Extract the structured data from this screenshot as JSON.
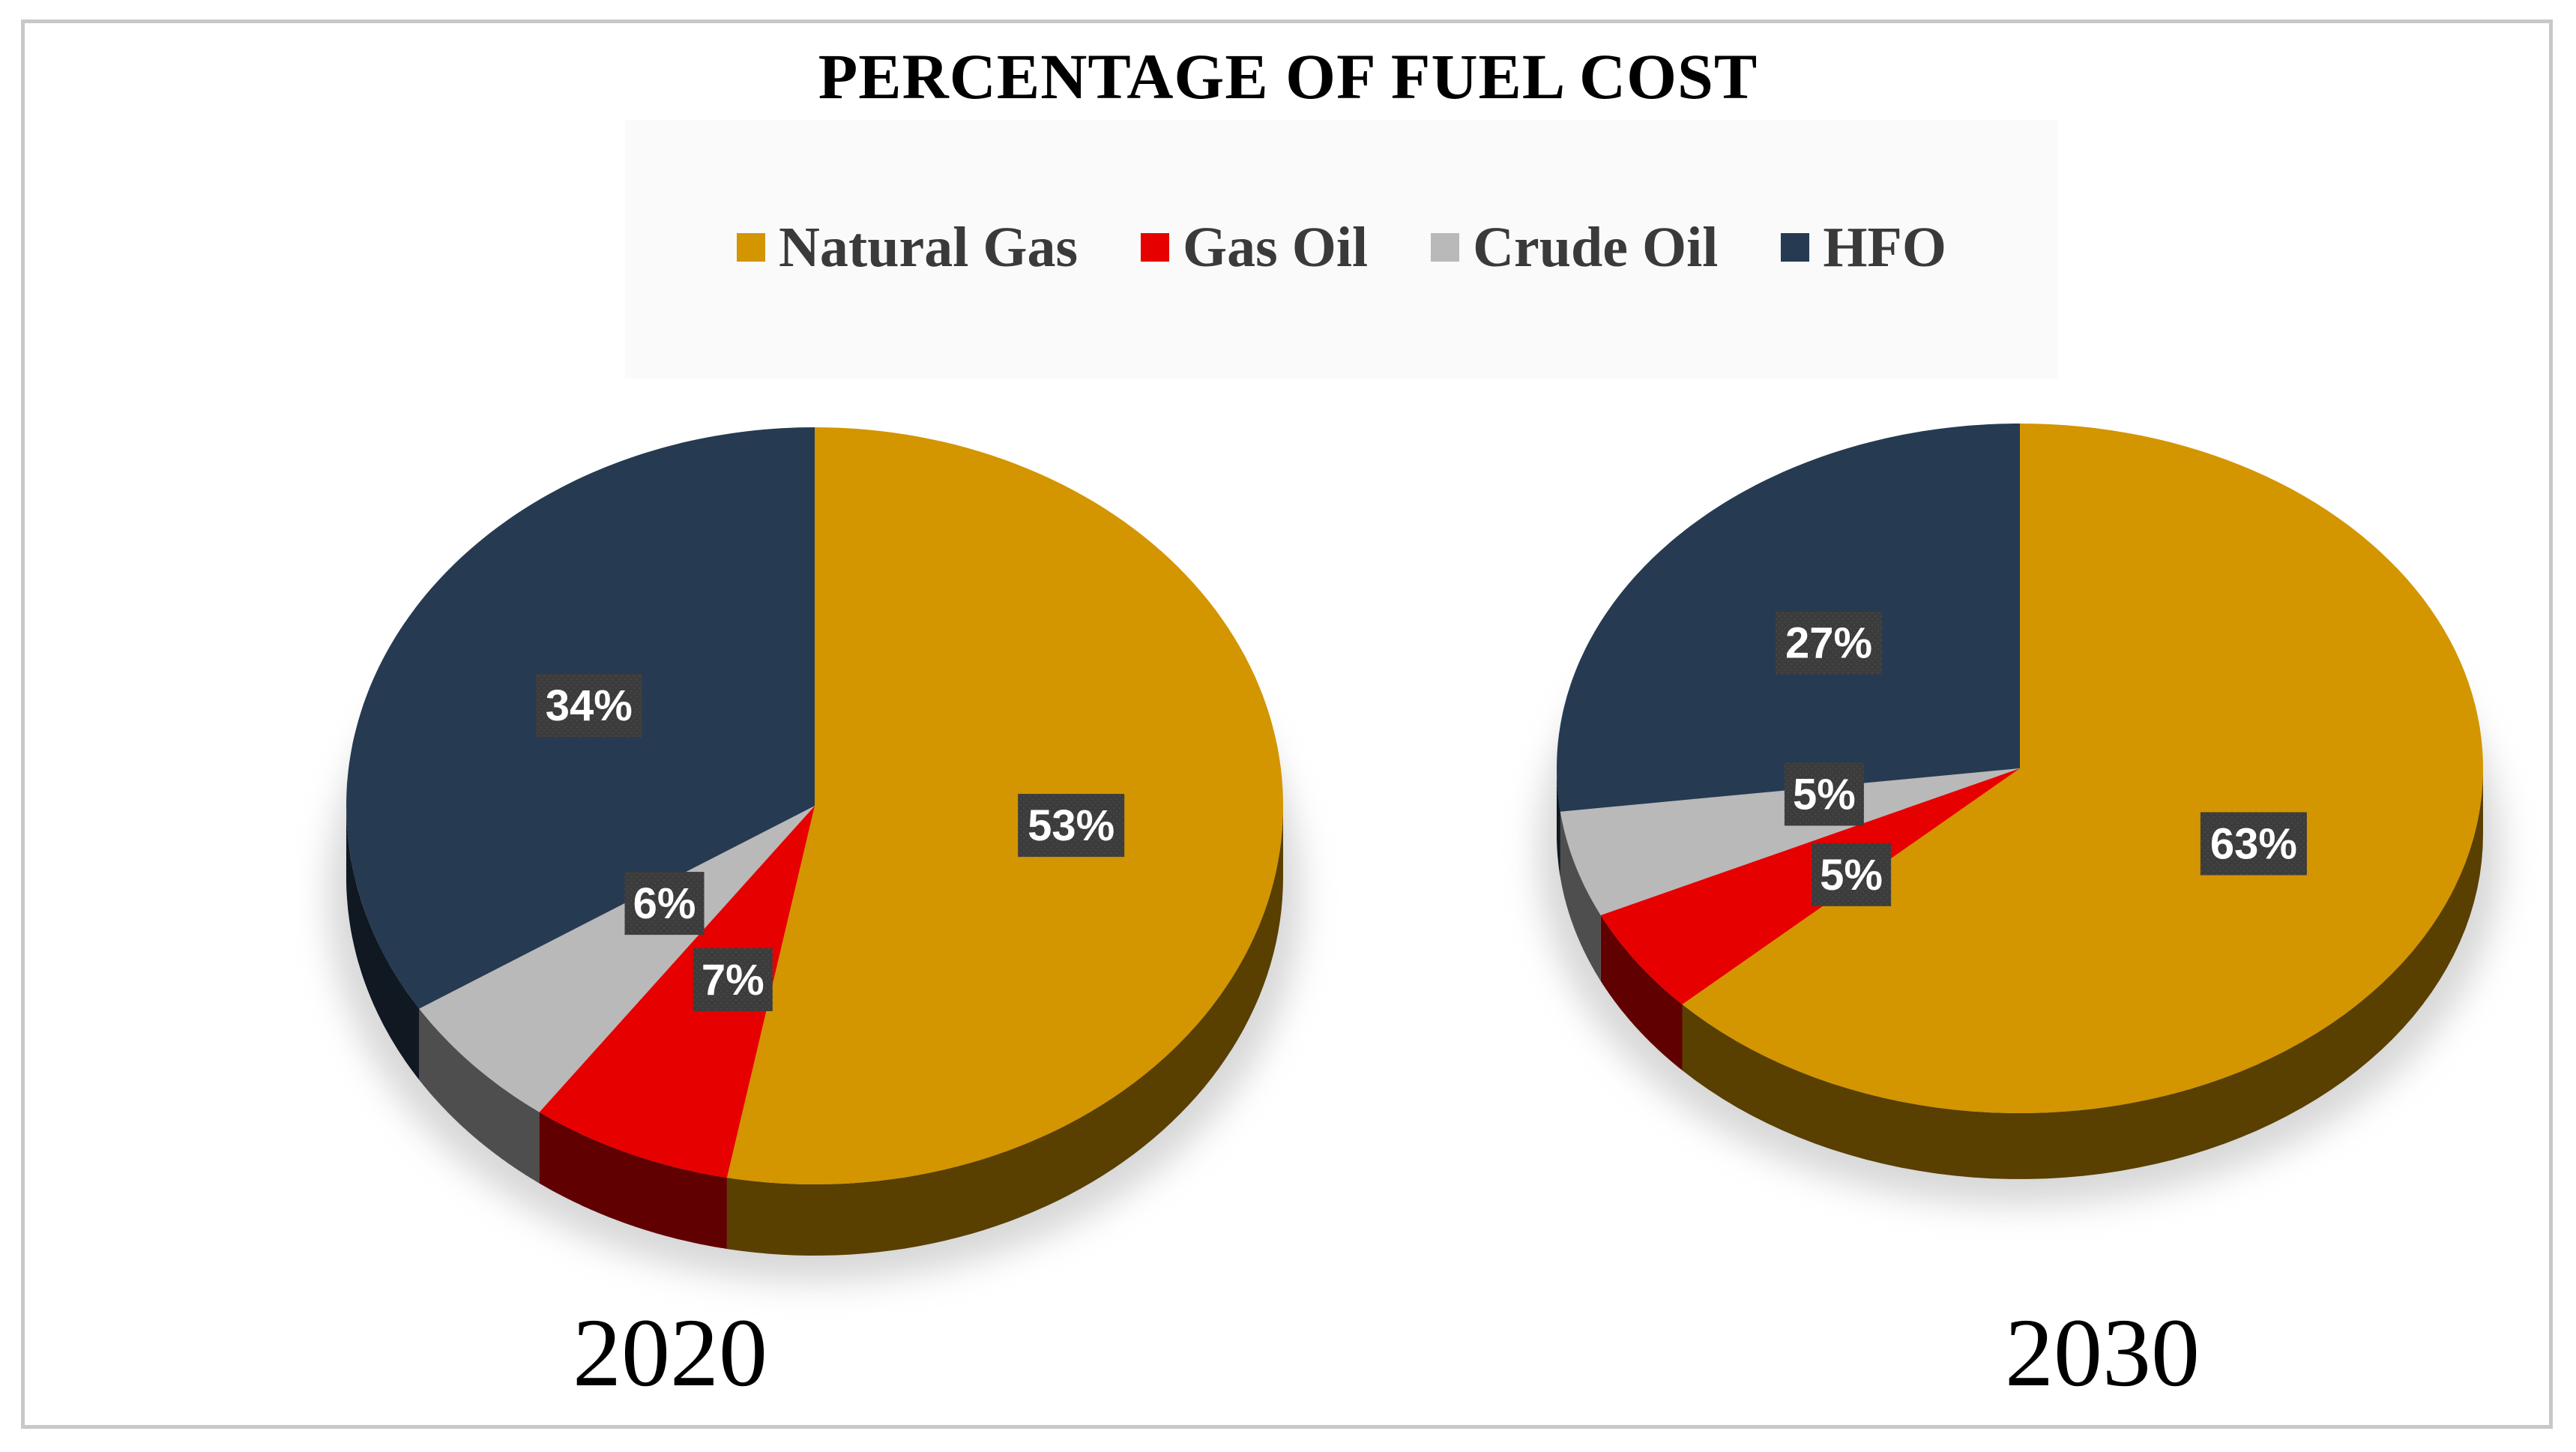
{
  "chart_data": {
    "type": "pie",
    "title": "PERCENTAGE  OF  FUEL COST",
    "legend_position": "top",
    "categories": [
      "Natural Gas",
      "Gas Oil",
      "Crude Oil",
      "HFO"
    ],
    "colors": {
      "Natural Gas": "#d39500",
      "Gas Oil": "#e60000",
      "Crude Oil": "#b9b9b9",
      "HFO": "#263a52"
    },
    "charts": [
      {
        "label": "2020",
        "values": {
          "Natural Gas": 53,
          "Gas Oil": 7,
          "Crude Oil": 6,
          "HFO": 34
        },
        "data_labels": {
          "Natural Gas": "53%",
          "Gas Oil": "7%",
          "Crude Oil": "6%",
          "HFO": "34%"
        }
      },
      {
        "label": "2030",
        "values": {
          "Natural Gas": 63,
          "Gas Oil": 5,
          "Crude Oil": 5,
          "HFO": 27
        },
        "data_labels": {
          "Natural Gas": "63%",
          "Gas Oil": "5%",
          "Crude Oil": "5%",
          "HFO": "27%"
        }
      }
    ]
  }
}
